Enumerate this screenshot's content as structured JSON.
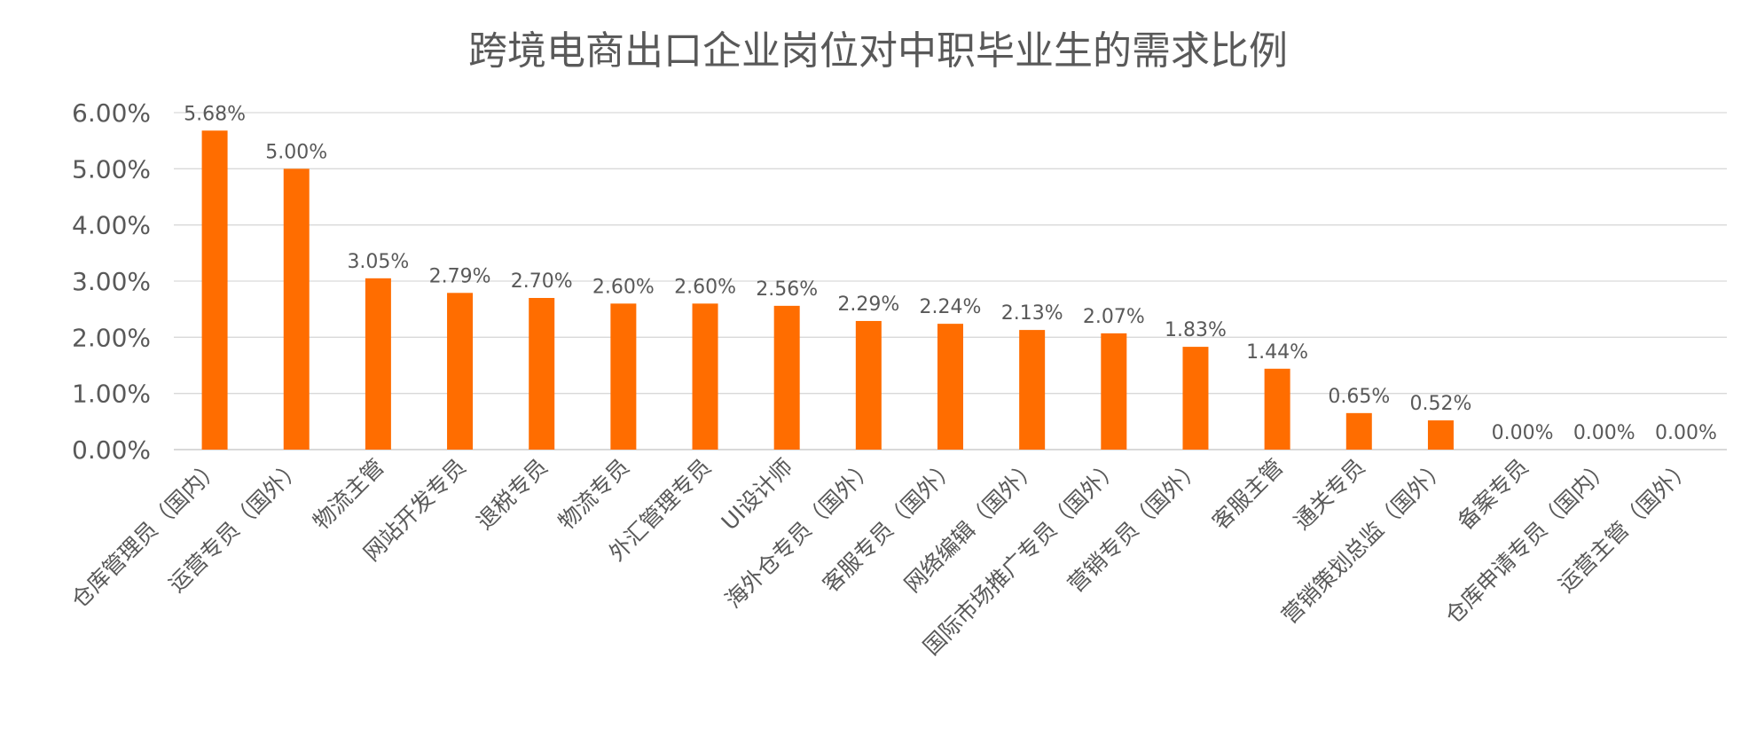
{
  "chart_data": {
    "type": "bar",
    "title": "跨境电商出口企业岗位对中职毕业生的需求比例",
    "categories": [
      "仓库管理员（国内）",
      "运营专员（国外）",
      "物流主管",
      "网站开发专员",
      "退税专员",
      "物流专员",
      "外汇管理专员",
      "UI设计师",
      "海外仓专员（国外）",
      "客服专员（国外）",
      "网络编辑（国外）",
      "国际市场推广专员（国外）",
      "营销专员（国外）",
      "客服主管",
      "通关专员",
      "营销策划总监（国外）",
      "备案专员",
      "仓库申请专员（国内）",
      "运营主管（国外）"
    ],
    "values": [
      5.68,
      5.0,
      3.05,
      2.79,
      2.7,
      2.6,
      2.6,
      2.56,
      2.29,
      2.24,
      2.13,
      2.07,
      1.83,
      1.44,
      0.65,
      0.52,
      0.0,
      0.0,
      0.0
    ],
    "data_labels": [
      "5.68%",
      "5.00%",
      "3.05%",
      "2.79%",
      "2.70%",
      "2.60%",
      "2.60%",
      "2.56%",
      "2.29%",
      "2.24%",
      "2.13%",
      "2.07%",
      "1.83%",
      "1.44%",
      "0.65%",
      "0.52%",
      "0.00%",
      "0.00%",
      "0.00%"
    ],
    "y_ticks": [
      "0.00%",
      "1.00%",
      "2.00%",
      "3.00%",
      "4.00%",
      "5.00%",
      "6.00%"
    ],
    "ylim": [
      0,
      6
    ],
    "xlabel": "",
    "ylabel": "",
    "grid": true,
    "legend": "none",
    "colors": {
      "bar": "#FF6D00",
      "grid": "#D9D9D9",
      "text": "#595959"
    }
  }
}
